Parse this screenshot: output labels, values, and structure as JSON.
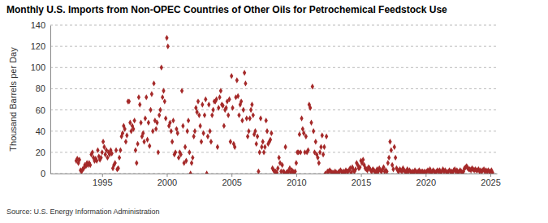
{
  "chart_data": {
    "type": "scatter",
    "title": "Monthly U.S. Imports from Non-OPEC Countries of Other Oils for Petrochemical Feedstock Use",
    "ylabel": "Thousand Barrels per Day",
    "source": "Source: U.S. Energy Information Administration",
    "color": "#a52a2a",
    "marker": "diamond",
    "grid": true,
    "xlim": [
      1991,
      2025.5
    ],
    "xticks": [
      1995,
      2000,
      2005,
      2010,
      2015,
      2020,
      2025
    ],
    "ylim": [
      0,
      140
    ],
    "yticks": [
      0,
      20,
      40,
      60,
      80,
      100,
      120,
      140
    ],
    "x": [
      1993,
      1993.083,
      1993.167,
      1993.25,
      1993.333,
      1993.417,
      1993.5,
      1993.583,
      1993.667,
      1993.75,
      1993.833,
      1993.917,
      1994,
      1994.083,
      1994.167,
      1994.25,
      1994.333,
      1994.417,
      1994.5,
      1994.583,
      1994.667,
      1994.75,
      1994.833,
      1994.917,
      1995,
      1995.083,
      1995.167,
      1995.25,
      1995.333,
      1995.417,
      1995.5,
      1995.583,
      1995.667,
      1995.75,
      1995.833,
      1995.917,
      1996,
      1996.083,
      1996.167,
      1996.25,
      1996.333,
      1996.417,
      1996.5,
      1996.583,
      1996.667,
      1996.75,
      1996.833,
      1996.917,
      1997,
      1997.083,
      1997.167,
      1997.25,
      1997.333,
      1997.417,
      1997.5,
      1997.583,
      1997.667,
      1997.75,
      1997.833,
      1997.917,
      1998,
      1998.083,
      1998.167,
      1998.25,
      1998.333,
      1998.417,
      1998.5,
      1998.583,
      1998.667,
      1998.75,
      1998.833,
      1998.917,
      1999,
      1999.083,
      1999.167,
      1999.25,
      1999.333,
      1999.417,
      1999.5,
      1999.583,
      1999.667,
      1999.75,
      1999.833,
      1999.917,
      2000,
      2000.083,
      2000.167,
      2000.25,
      2000.333,
      2000.417,
      2000.5,
      2000.583,
      2000.667,
      2000.75,
      2000.833,
      2000.917,
      2001,
      2001.083,
      2001.167,
      2001.25,
      2001.333,
      2001.417,
      2001.5,
      2001.583,
      2001.667,
      2001.75,
      2001.833,
      2001.917,
      2002,
      2002.083,
      2002.167,
      2002.25,
      2002.333,
      2002.417,
      2002.5,
      2002.583,
      2002.667,
      2002.75,
      2002.833,
      2002.917,
      2003,
      2003.083,
      2003.167,
      2003.25,
      2003.333,
      2003.417,
      2003.5,
      2003.583,
      2003.667,
      2003.75,
      2003.833,
      2003.917,
      2004,
      2004.083,
      2004.167,
      2004.25,
      2004.333,
      2004.417,
      2004.5,
      2004.583,
      2004.667,
      2004.75,
      2004.833,
      2004.917,
      2005,
      2005.083,
      2005.167,
      2005.25,
      2005.333,
      2005.417,
      2005.5,
      2005.583,
      2005.667,
      2005.75,
      2005.833,
      2005.917,
      2006,
      2006.083,
      2006.167,
      2006.25,
      2006.333,
      2006.417,
      2006.5,
      2006.583,
      2006.667,
      2006.75,
      2006.833,
      2006.917,
      2007,
      2007.083,
      2007.167,
      2007.25,
      2007.333,
      2007.417,
      2007.5,
      2007.583,
      2007.667,
      2007.75,
      2007.833,
      2007.917,
      2008,
      2008.083,
      2008.167,
      2008.25,
      2008.333,
      2008.417,
      2008.5,
      2008.583,
      2008.667,
      2008.75,
      2008.833,
      2008.917,
      2009,
      2009.083,
      2009.167,
      2009.25,
      2009.333,
      2009.417,
      2009.5,
      2009.583,
      2009.667,
      2009.75,
      2009.833,
      2009.917,
      2010,
      2010.083,
      2010.167,
      2010.25,
      2010.333,
      2010.417,
      2010.5,
      2010.583,
      2010.667,
      2010.75,
      2010.833,
      2010.917,
      2011,
      2011.083,
      2011.167,
      2011.25,
      2011.333,
      2011.417,
      2011.5,
      2011.583,
      2011.667,
      2011.75,
      2011.833,
      2011.917,
      2012,
      2012.083,
      2012.167,
      2012.25,
      2012.333,
      2012.417,
      2012.5,
      2012.583,
      2012.667,
      2012.75,
      2012.833,
      2012.917,
      2013,
      2013.083,
      2013.167,
      2013.25,
      2013.333,
      2013.417,
      2013.5,
      2013.583,
      2013.667,
      2013.75,
      2013.833,
      2013.917,
      2014,
      2014.083,
      2014.167,
      2014.25,
      2014.333,
      2014.417,
      2014.5,
      2014.583,
      2014.667,
      2014.75,
      2014.833,
      2014.917,
      2015,
      2015.083,
      2015.167,
      2015.25,
      2015.333,
      2015.417,
      2015.5,
      2015.583,
      2015.667,
      2015.75,
      2015.833,
      2015.917,
      2016,
      2016.083,
      2016.167,
      2016.25,
      2016.333,
      2016.417,
      2016.5,
      2016.583,
      2016.667,
      2016.75,
      2016.833,
      2016.917,
      2017,
      2017.083,
      2017.167,
      2017.25,
      2017.333,
      2017.417,
      2017.5,
      2017.583,
      2017.667,
      2017.75,
      2017.833,
      2017.917,
      2018,
      2018.083,
      2018.167,
      2018.25,
      2018.333,
      2018.417,
      2018.5,
      2018.583,
      2018.667,
      2018.75,
      2018.833,
      2018.917,
      2019,
      2019.083,
      2019.167,
      2019.25,
      2019.333,
      2019.417,
      2019.5,
      2019.583,
      2019.667,
      2019.75,
      2019.833,
      2019.917,
      2020,
      2020.083,
      2020.167,
      2020.25,
      2020.333,
      2020.417,
      2020.5,
      2020.583,
      2020.667,
      2020.75,
      2020.833,
      2020.917,
      2021,
      2021.083,
      2021.167,
      2021.25,
      2021.333,
      2021.417,
      2021.5,
      2021.583,
      2021.667,
      2021.75,
      2021.833,
      2021.917,
      2022,
      2022.083,
      2022.167,
      2022.25,
      2022.333,
      2022.417,
      2022.5,
      2022.583,
      2022.667,
      2022.75,
      2022.833,
      2022.917,
      2023,
      2023.083,
      2023.167,
      2023.25,
      2023.333,
      2023.417,
      2023.5,
      2023.583,
      2023.667,
      2023.75,
      2023.833,
      2023.917,
      2024,
      2024.083,
      2024.167,
      2024.25,
      2024.333,
      2024.417,
      2024.5,
      2024.583,
      2024.667,
      2024.75,
      2024.833,
      2024.917,
      2025,
      2025.083,
      2025.167
    ],
    "values": [
      12,
      14,
      10,
      13,
      3,
      2,
      4,
      5,
      8,
      7,
      10,
      8,
      10,
      8,
      18,
      20,
      15,
      12,
      14,
      12,
      22,
      16,
      13,
      15,
      20,
      30,
      25,
      18,
      22,
      15,
      20,
      18,
      22,
      19,
      5,
      8,
      10,
      22,
      4,
      5,
      15,
      22,
      35,
      38,
      45,
      42,
      30,
      36,
      68,
      68,
      48,
      40,
      45,
      42,
      50,
      22,
      10,
      28,
      72,
      65,
      48,
      35,
      38,
      30,
      52,
      72,
      32,
      48,
      26,
      60,
      75,
      40,
      85,
      50,
      42,
      48,
      20,
      55,
      60,
      100,
      72,
      78,
      68,
      52,
      128,
      120,
      45,
      48,
      40,
      30,
      50,
      18,
      20,
      42,
      38,
      15,
      20,
      18,
      78,
      45,
      10,
      25,
      12,
      40,
      50,
      20,
      0,
      10,
      15,
      35,
      40,
      62,
      58,
      68,
      55,
      45,
      30,
      65,
      38,
      55,
      70,
      0,
      35,
      65,
      40,
      30,
      55,
      60,
      68,
      68,
      70,
      25,
      62,
      72,
      78,
      65,
      64,
      45,
      60,
      62,
      68,
      55,
      70,
      30,
      92,
      62,
      28,
      25,
      72,
      88,
      73,
      55,
      65,
      68,
      50,
      60,
      95,
      85,
      52,
      35,
      40,
      52,
      60,
      65,
      55,
      37,
      40,
      28,
      35,
      2,
      20,
      52,
      25,
      30,
      20,
      25,
      50,
      40,
      28,
      30,
      32,
      38,
      5,
      3,
      2,
      2,
      1,
      5,
      15,
      10,
      2,
      8,
      2,
      1,
      25,
      1,
      2,
      2,
      5,
      1,
      3,
      2,
      1,
      2,
      10,
      20,
      20,
      37,
      20,
      52,
      42,
      38,
      20,
      35,
      20,
      22,
      65,
      62,
      48,
      82,
      40,
      20,
      30,
      18,
      15,
      10,
      20,
      25,
      36,
      18,
      25,
      0,
      35,
      2,
      2,
      3,
      2,
      1,
      1,
      0,
      2,
      1,
      0,
      1,
      2,
      3,
      2,
      1,
      2,
      1,
      3,
      2,
      2,
      3,
      5,
      1,
      6,
      3,
      2,
      4,
      10,
      8,
      5,
      6,
      12,
      10,
      13,
      8,
      5,
      4,
      3,
      6,
      5,
      3,
      2,
      4,
      3,
      2,
      1,
      4,
      2,
      5,
      3,
      2,
      4,
      6,
      2,
      3,
      2,
      10,
      15,
      30,
      22,
      8,
      4,
      25,
      15,
      5,
      3,
      2,
      4,
      3,
      2,
      5,
      3,
      2,
      1,
      4,
      2,
      3,
      2,
      1,
      2,
      1,
      3,
      2,
      1,
      2,
      3,
      1,
      2,
      2,
      1,
      2,
      1,
      2,
      3,
      2,
      4,
      1,
      2,
      3,
      2,
      1,
      2,
      3,
      2,
      3,
      1,
      2,
      4,
      2,
      3,
      2,
      1,
      2,
      3,
      2,
      2,
      1,
      3,
      4,
      2,
      3,
      1,
      2,
      3,
      2,
      1,
      2,
      5,
      6,
      7,
      5,
      4,
      4,
      3,
      5,
      4,
      3,
      4,
      3,
      3,
      4,
      2,
      3,
      2,
      3,
      4,
      2,
      3,
      2,
      3,
      2,
      2,
      3,
      1
    ]
  }
}
